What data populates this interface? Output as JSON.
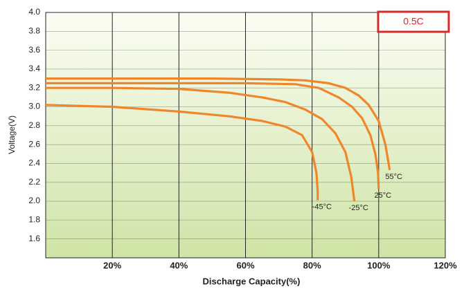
{
  "chart_data": {
    "type": "line",
    "badge": "0.5C",
    "xlabel": "Discharge Capacity(%)",
    "ylabel": "Voltage(V)",
    "xlim": [
      0,
      120
    ],
    "xticks": [
      {
        "value": 20,
        "label": "20%"
      },
      {
        "value": 40,
        "label": "40%"
      },
      {
        "value": 60,
        "label": "60%"
      },
      {
        "value": 80,
        "label": "80%"
      },
      {
        "value": 100,
        "label": "100%"
      },
      {
        "value": 120,
        "label": "120%"
      }
    ],
    "ylim": [
      1.4,
      4.0
    ],
    "yticks": [
      {
        "value": 1.6,
        "label": "1.6"
      },
      {
        "value": 1.8,
        "label": "1.8"
      },
      {
        "value": 2.0,
        "label": "2.0"
      },
      {
        "value": 2.2,
        "label": "2.2"
      },
      {
        "value": 2.4,
        "label": "2.4"
      },
      {
        "value": 2.6,
        "label": "2.6"
      },
      {
        "value": 2.8,
        "label": "2.8"
      },
      {
        "value": 3.0,
        "label": "3.0"
      },
      {
        "value": 3.2,
        "label": "3.2"
      },
      {
        "value": 3.4,
        "label": "3.4"
      },
      {
        "value": 3.6,
        "label": "3.6"
      },
      {
        "value": 3.8,
        "label": "3.8"
      },
      {
        "value": 4.0,
        "label": "4.0"
      }
    ],
    "grid": true,
    "series": [
      {
        "name": "55°C",
        "color": "#f0862a",
        "x": [
          0,
          20,
          50,
          70,
          78,
          85,
          90,
          94,
          97,
          100,
          102,
          103.3
        ],
        "values": [
          3.3,
          3.3,
          3.3,
          3.29,
          3.28,
          3.25,
          3.2,
          3.12,
          3.02,
          2.85,
          2.6,
          2.33
        ]
      },
      {
        "name": "25°C",
        "color": "#f0862a",
        "x": [
          0,
          30,
          60,
          75,
          82,
          88,
          92,
          95,
          97.5,
          99,
          99.8,
          100
        ],
        "values": [
          3.25,
          3.25,
          3.25,
          3.24,
          3.2,
          3.1,
          3.0,
          2.88,
          2.7,
          2.5,
          2.3,
          2.13
        ]
      },
      {
        "name": "-25°C",
        "color": "#f0862a",
        "x": [
          0,
          20,
          40,
          55,
          65,
          72,
          78,
          83,
          87,
          90,
          91.8,
          92.7
        ],
        "values": [
          3.2,
          3.2,
          3.19,
          3.15,
          3.1,
          3.05,
          2.97,
          2.87,
          2.72,
          2.52,
          2.25,
          2.0
        ]
      },
      {
        "name": "-45°C",
        "color": "#f0862a",
        "x": [
          0,
          10,
          20,
          40,
          55,
          65,
          72,
          77,
          80,
          81.3,
          81.7,
          81.7
        ],
        "values": [
          3.02,
          3.01,
          3.0,
          2.95,
          2.9,
          2.85,
          2.79,
          2.7,
          2.52,
          2.3,
          2.1,
          2.01
        ]
      }
    ]
  }
}
